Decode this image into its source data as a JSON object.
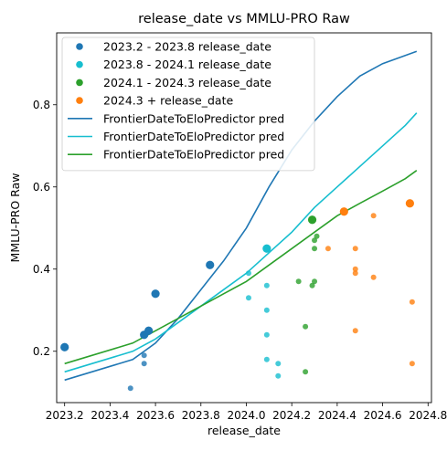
{
  "chart_data": {
    "type": "scatter",
    "title": "release_date vs MMLU-PRO Raw",
    "xlabel": "release_date",
    "ylabel": "MMLU-PRO Raw",
    "xlim": [
      2023.165,
      2024.815
    ],
    "ylim": [
      0.075,
      0.975
    ],
    "x_ticks": [
      2023.2,
      2023.4,
      2023.6,
      2023.8,
      2024.0,
      2024.2,
      2024.4,
      2024.6,
      2024.8
    ],
    "x_tick_labels": [
      "2023.2",
      "2023.4",
      "2023.6",
      "2023.8",
      "2024.0",
      "2024.2",
      "2024.4",
      "2024.6",
      "2024.8"
    ],
    "y_ticks": [
      0.2,
      0.4,
      0.6,
      0.8
    ],
    "y_tick_labels": [
      "0.2",
      "0.4",
      "0.6",
      "0.8"
    ],
    "grid": false,
    "legend_position": "top-left",
    "scatter_series": [
      {
        "name": "2023.2 - 2023.8 release_date",
        "color": "#1f77b4",
        "points": [
          {
            "x": 2023.2,
            "y": 0.21,
            "s": "big"
          },
          {
            "x": 2023.55,
            "y": 0.24,
            "s": "big"
          },
          {
            "x": 2023.57,
            "y": 0.25,
            "s": "big"
          },
          {
            "x": 2023.6,
            "y": 0.34,
            "s": "big"
          },
          {
            "x": 2023.84,
            "y": 0.41,
            "s": "big"
          },
          {
            "x": 2023.49,
            "y": 0.11,
            "s": "small"
          },
          {
            "x": 2023.55,
            "y": 0.17,
            "s": "small"
          },
          {
            "x": 2023.55,
            "y": 0.19,
            "s": "small"
          }
        ]
      },
      {
        "name": "2023.8 - 2024.1 release_date",
        "color": "#17becf",
        "points": [
          {
            "x": 2024.09,
            "y": 0.45,
            "s": "big"
          },
          {
            "x": 2024.01,
            "y": 0.39,
            "s": "small"
          },
          {
            "x": 2024.01,
            "y": 0.33,
            "s": "small"
          },
          {
            "x": 2024.09,
            "y": 0.36,
            "s": "small"
          },
          {
            "x": 2024.09,
            "y": 0.3,
            "s": "small"
          },
          {
            "x": 2024.09,
            "y": 0.24,
            "s": "small"
          },
          {
            "x": 2024.09,
            "y": 0.18,
            "s": "small"
          },
          {
            "x": 2024.14,
            "y": 0.17,
            "s": "small"
          },
          {
            "x": 2024.14,
            "y": 0.14,
            "s": "small"
          }
        ]
      },
      {
        "name": "2024.1 - 2024.3 release_date",
        "color": "#2ca02c",
        "points": [
          {
            "x": 2024.29,
            "y": 0.52,
            "s": "big"
          },
          {
            "x": 2024.3,
            "y": 0.47,
            "s": "small"
          },
          {
            "x": 2024.31,
            "y": 0.48,
            "s": "small"
          },
          {
            "x": 2024.3,
            "y": 0.45,
            "s": "small"
          },
          {
            "x": 2024.23,
            "y": 0.37,
            "s": "small"
          },
          {
            "x": 2024.3,
            "y": 0.37,
            "s": "small"
          },
          {
            "x": 2024.29,
            "y": 0.36,
            "s": "small"
          },
          {
            "x": 2024.26,
            "y": 0.26,
            "s": "small"
          },
          {
            "x": 2024.26,
            "y": 0.15,
            "s": "small"
          }
        ]
      },
      {
        "name": "2024.3 + release_date",
        "color": "#ff7f0e",
        "points": [
          {
            "x": 2024.43,
            "y": 0.54,
            "s": "big"
          },
          {
            "x": 2024.72,
            "y": 0.56,
            "s": "big"
          },
          {
            "x": 2024.56,
            "y": 0.53,
            "s": "small"
          },
          {
            "x": 2024.36,
            "y": 0.45,
            "s": "small"
          },
          {
            "x": 2024.48,
            "y": 0.45,
            "s": "small"
          },
          {
            "x": 2024.48,
            "y": 0.4,
            "s": "small"
          },
          {
            "x": 2024.48,
            "y": 0.39,
            "s": "small"
          },
          {
            "x": 2024.56,
            "y": 0.38,
            "s": "small"
          },
          {
            "x": 2024.73,
            "y": 0.32,
            "s": "small"
          },
          {
            "x": 2024.48,
            "y": 0.25,
            "s": "small"
          },
          {
            "x": 2024.73,
            "y": 0.17,
            "s": "small"
          }
        ]
      }
    ],
    "line_series": [
      {
        "name": "FrontierDateToEloPredictor pred",
        "color": "#1f77b4",
        "x": [
          2023.2,
          2023.5,
          2023.6,
          2023.7,
          2023.8,
          2023.9,
          2024.0,
          2024.1,
          2024.2,
          2024.3,
          2024.4,
          2024.5,
          2024.6,
          2024.7,
          2024.75
        ],
        "y": [
          0.13,
          0.18,
          0.22,
          0.28,
          0.35,
          0.42,
          0.5,
          0.6,
          0.69,
          0.76,
          0.82,
          0.87,
          0.9,
          0.92,
          0.93
        ]
      },
      {
        "name": "FrontierDateToEloPredictor pred",
        "color": "#17becf",
        "x": [
          2023.2,
          2023.5,
          2023.6,
          2023.7,
          2023.8,
          2023.9,
          2024.0,
          2024.1,
          2024.2,
          2024.3,
          2024.4,
          2024.5,
          2024.6,
          2024.7,
          2024.75
        ],
        "y": [
          0.15,
          0.2,
          0.23,
          0.27,
          0.31,
          0.35,
          0.39,
          0.44,
          0.49,
          0.55,
          0.6,
          0.65,
          0.7,
          0.75,
          0.78
        ]
      },
      {
        "name": "FrontierDateToEloPredictor pred",
        "color": "#2ca02c",
        "x": [
          2023.2,
          2023.5,
          2023.6,
          2023.7,
          2023.8,
          2023.9,
          2024.0,
          2024.1,
          2024.2,
          2024.3,
          2024.4,
          2024.5,
          2024.6,
          2024.7,
          2024.75
        ],
        "y": [
          0.17,
          0.22,
          0.25,
          0.28,
          0.31,
          0.34,
          0.37,
          0.41,
          0.45,
          0.49,
          0.53,
          0.56,
          0.59,
          0.62,
          0.64
        ]
      }
    ]
  }
}
